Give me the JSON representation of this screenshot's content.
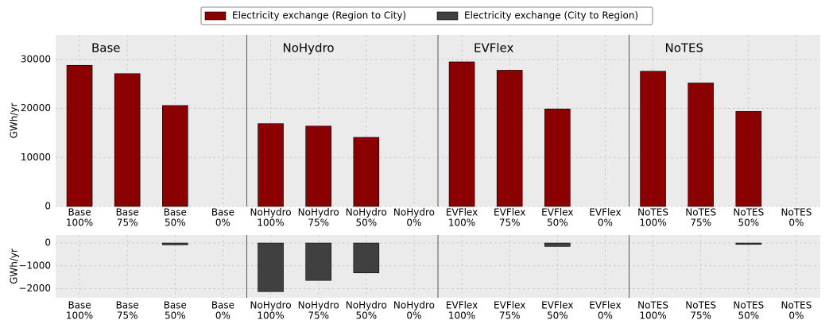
{
  "chart_data": [
    {
      "type": "bar",
      "groups": [
        "Base",
        "NoHydro",
        "EVFlex",
        "NoTES"
      ],
      "y_label": "GWh/yr",
      "categories": [
        [
          "Base",
          "100%"
        ],
        [
          "Base",
          "75%"
        ],
        [
          "Base",
          "50%"
        ],
        [
          "Base",
          "0%"
        ],
        [
          "NoHydro",
          "100%"
        ],
        [
          "NoHydro",
          "75%"
        ],
        [
          "NoHydro",
          "50%"
        ],
        [
          "NoHydro",
          "0%"
        ],
        [
          "EVFlex",
          "100%"
        ],
        [
          "EVFlex",
          "75%"
        ],
        [
          "EVFlex",
          "50%"
        ],
        [
          "EVFlex",
          "0%"
        ],
        [
          "NoTES",
          "100%"
        ],
        [
          "NoTES",
          "75%"
        ],
        [
          "NoTES",
          "50%"
        ],
        [
          "NoTES",
          "0%"
        ]
      ],
      "series": [
        {
          "name": "Electricity exchange (Region to City)",
          "color": "#8b0000",
          "values": [
            28800,
            27100,
            20600,
            0,
            16900,
            16400,
            14100,
            0,
            29500,
            27800,
            19900,
            0,
            27600,
            25200,
            19400,
            0
          ]
        }
      ],
      "ylim": [
        0,
        35000
      ],
      "yticks": [
        0,
        10000,
        20000,
        30000
      ],
      "grid": true
    },
    {
      "type": "bar",
      "y_label": "GWh/yr",
      "categories": [
        [
          "Base",
          "100%"
        ],
        [
          "Base",
          "75%"
        ],
        [
          "Base",
          "50%"
        ],
        [
          "Base",
          "0%"
        ],
        [
          "NoHydro",
          "100%"
        ],
        [
          "NoHydro",
          "75%"
        ],
        [
          "NoHydro",
          "50%"
        ],
        [
          "NoHydro",
          "0%"
        ],
        [
          "EVFlex",
          "100%"
        ],
        [
          "EVFlex",
          "75%"
        ],
        [
          "EVFlex",
          "50%"
        ],
        [
          "EVFlex",
          "0%"
        ],
        [
          "NoTES",
          "100%"
        ],
        [
          "NoTES",
          "75%"
        ],
        [
          "NoTES",
          "50%"
        ],
        [
          "NoTES",
          "0%"
        ]
      ],
      "series": [
        {
          "name": "Electricity exchange (City to Region)",
          "color": "#404040",
          "values": [
            0,
            0,
            -80,
            0,
            -2130,
            -1640,
            -1310,
            0,
            0,
            0,
            -150,
            0,
            0,
            0,
            -60,
            0
          ]
        }
      ],
      "ylim": [
        -2400,
        350
      ],
      "yticks": [
        {
          "value": -2000,
          "label": "−2000"
        },
        {
          "value": -1000,
          "label": "−1000"
        },
        0
      ],
      "grid": true
    }
  ]
}
